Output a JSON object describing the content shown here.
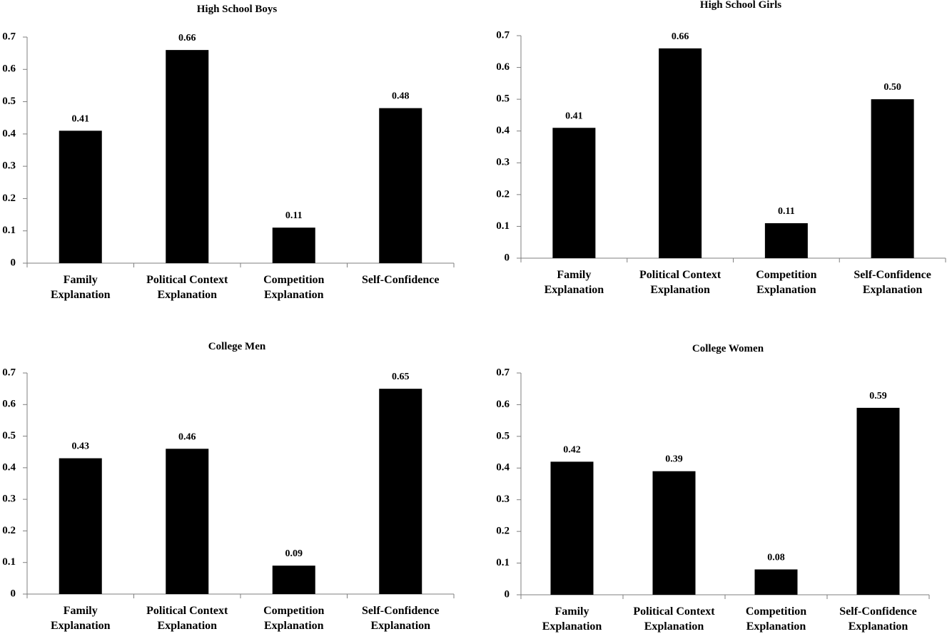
{
  "chart_data": [
    {
      "type": "bar",
      "title": "High School Boys",
      "categories": [
        [
          "Family",
          "Explanation"
        ],
        [
          "Political Context",
          "Explanation"
        ],
        [
          "Competition",
          "Explanation"
        ],
        [
          "Self-Confidence"
        ]
      ],
      "values": [
        0.41,
        0.66,
        0.11,
        0.48
      ],
      "value_labels": [
        "0.41",
        "0.66",
        "0.11",
        "0.48"
      ],
      "color": "#000000",
      "ylim": [
        0,
        0.7
      ],
      "yticks": [
        0,
        0.1,
        0.2,
        0.3,
        0.4,
        0.5,
        0.6,
        0.7
      ]
    },
    {
      "type": "bar",
      "title": "High School Girls",
      "categories": [
        [
          "Family",
          "Explanation"
        ],
        [
          "Political Context",
          "Explanation"
        ],
        [
          "Competition",
          "Explanation"
        ],
        [
          "Self-Confidence",
          "Explanation"
        ]
      ],
      "values": [
        0.41,
        0.66,
        0.11,
        0.5
      ],
      "value_labels": [
        "0.41",
        "0.66",
        "0.11",
        "0.50"
      ],
      "color": "#000000",
      "ylim": [
        0,
        0.7
      ],
      "yticks": [
        0,
        0.1,
        0.2,
        0.3,
        0.4,
        0.5,
        0.6,
        0.7
      ]
    },
    {
      "type": "bar",
      "title": "College Men",
      "categories": [
        [
          "Family",
          "Explanation"
        ],
        [
          "Political Context",
          "Explanation"
        ],
        [
          "Competition",
          "Explanation"
        ],
        [
          "Self-Confidence",
          "Explanation"
        ]
      ],
      "values": [
        0.43,
        0.46,
        0.09,
        0.65
      ],
      "value_labels": [
        "0.43",
        "0.46",
        "0.09",
        "0.65"
      ],
      "color": "#000000",
      "ylim": [
        0,
        0.7
      ],
      "yticks": [
        0,
        0.1,
        0.2,
        0.3,
        0.4,
        0.5,
        0.6,
        0.7
      ]
    },
    {
      "type": "bar",
      "title": "College Women",
      "categories": [
        [
          "Family",
          "Explanation"
        ],
        [
          "Political Context",
          "Explanation"
        ],
        [
          "Competition",
          "Explanation"
        ],
        [
          "Self-Confidence",
          "Explanation"
        ]
      ],
      "values": [
        0.42,
        0.39,
        0.08,
        0.59
      ],
      "value_labels": [
        "0.42",
        "0.39",
        "0.08",
        "0.59"
      ],
      "color": "#000000",
      "ylim": [
        0,
        0.7
      ],
      "yticks": [
        0,
        0.1,
        0.2,
        0.3,
        0.4,
        0.5,
        0.6,
        0.7
      ]
    }
  ]
}
